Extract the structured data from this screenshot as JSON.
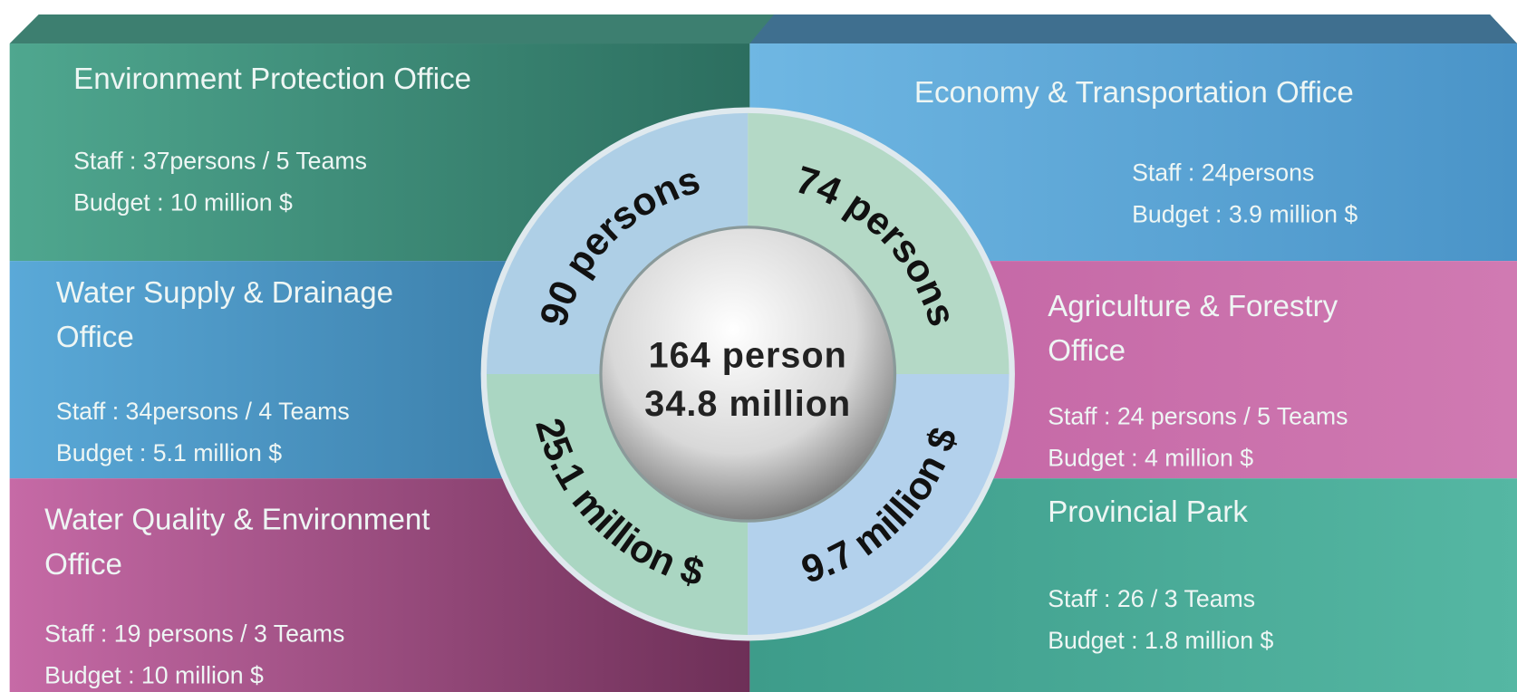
{
  "left_panels": [
    {
      "title_lines": [
        "Environment Protection Office"
      ],
      "staff": "Staff  : 37persons / 5 Teams",
      "budget": "Budget : 10 million $"
    },
    {
      "title_lines": [
        "Water Supply & Drainage",
        "Office"
      ],
      "staff": "Staff : 34persons / 4 Teams",
      "budget": "Budget : 5.1 million $"
    },
    {
      "title_lines": [
        "Water Quality & Environment",
        "Office"
      ],
      "staff": "Staff : 19 persons / 3 Teams",
      "budget": "Budget : 10 million $"
    }
  ],
  "right_panels": [
    {
      "title_lines": [
        "Economy & Transportation Office"
      ],
      "staff": "Staff : 24persons",
      "budget": "Budget : 3.9 million $"
    },
    {
      "title_lines": [
        "Agriculture & Forestry",
        "Office"
      ],
      "staff": "Staff : 24 persons / 5 Teams",
      "budget": "Budget : 4 million $"
    },
    {
      "title_lines": [
        "Provincial Park"
      ],
      "staff": "Staff : 26 / 3 Teams",
      "budget": "Budget : 1.8 million $"
    }
  ],
  "ring": {
    "top_left": "90 persons",
    "top_right": "74 persons",
    "bottom_left": "25.1 million $",
    "bottom_right": "9.7 million $"
  },
  "center": {
    "line1": "164 person",
    "line2": "34.8 million"
  }
}
